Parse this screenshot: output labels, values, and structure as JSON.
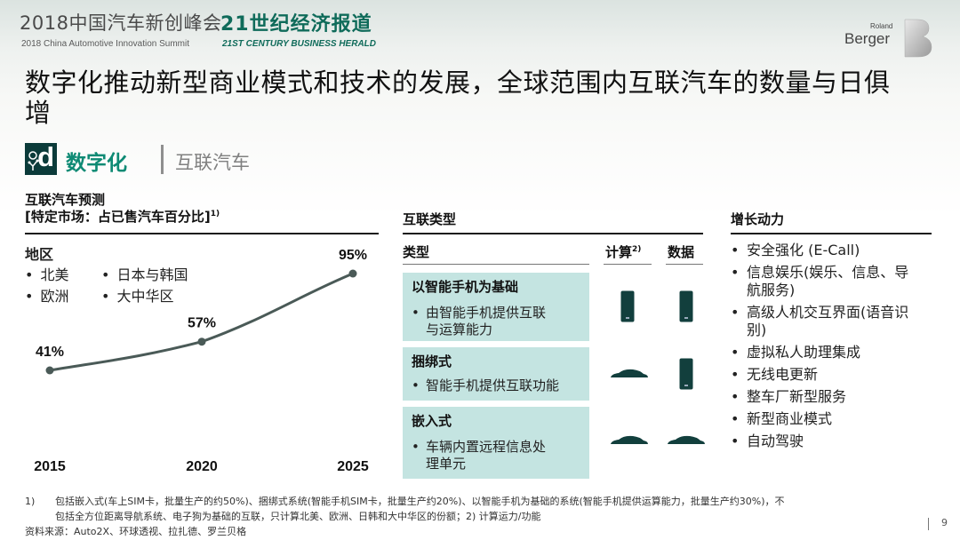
{
  "header": {
    "summit_cn": "2018中国汽车新创峰会",
    "summit_en": "2018 China Automotive Innovation Summit",
    "herald_cn": "21世纪经济报道",
    "herald_en": "21ST CENTURY BUSINESS HERALD",
    "rb_roland": "Roland",
    "rb_berger": "Berger"
  },
  "title": "数字化推动新型商业模式和技术的发展，全球范围内互联汽车的数量与日俱增",
  "section": {
    "icon_letter": "d",
    "main": "数字化",
    "sub": "互联汽车"
  },
  "forecast": {
    "heading": "互联汽车预测",
    "subheading": "[特定市场：占已售汽车百分比]",
    "subheading_sup": "1)",
    "region_label": "地区",
    "regions_left": [
      "北美",
      "欧洲"
    ],
    "regions_right": [
      "日本与韩国",
      "大中华区"
    ]
  },
  "chart_data": {
    "type": "line",
    "x": [
      "2015",
      "2020",
      "2025"
    ],
    "series": [
      {
        "values": [
          41,
          57,
          95
        ]
      }
    ],
    "data_labels": [
      "41%",
      "57%",
      "95%"
    ],
    "color": "#4a5a57"
  },
  "types": {
    "heading": "互联类型",
    "col_type": "类型",
    "col_compute": "计算",
    "col_compute_sup": "2)",
    "col_data": "数据",
    "rows": [
      {
        "title": "以智能手机为基础",
        "desc1": "由智能手机提供互联",
        "desc2": "与运算能力",
        "compute_icon": "smartphone-icon",
        "data_icon": "smartphone-icon"
      },
      {
        "title": "捆绑式",
        "desc1": "智能手机提供互联功能",
        "desc2": "",
        "compute_icon": "car-icon",
        "data_icon": "smartphone-icon"
      },
      {
        "title": "嵌入式",
        "desc1": "车辆内置远程信息处",
        "desc2": "理单元",
        "compute_icon": "car-icon",
        "data_icon": "car-icon"
      }
    ]
  },
  "growth": {
    "heading": "增长动力",
    "items": [
      "安全强化 (E-Call)",
      "信息娱乐(娱乐、信息、导",
      "航服务)",
      "高级人机交互界面(语音识",
      "别)",
      "虚拟私人助理集成",
      "无线电更新",
      "整车厂新型服务",
      "新型商业模式",
      "自动驾驶"
    ]
  },
  "footnotes": {
    "n1_label": "1)",
    "n1_line1": "包括嵌入式(车上SIM卡，批量生产的约50%)、捆绑式系统(智能手机SIM卡，批量生产约20%)、以智能手机为基础的系统(智能手机提供运算能力，批量生产约30%)，不",
    "n1_line2": "包括全方位距离导航系统、电子狗为基础的互联，只计算北美、欧洲、日韩和大中华区的份额；2) 计算运力/功能",
    "source": "资料来源：Auto2X、环球透视、拉扎德、罗兰贝格"
  },
  "page_number": "9",
  "colors": {
    "accent": "#0e8a74",
    "box": "#c4e4e1",
    "dark": "#0b3b3a",
    "herald": "#0f6b5a"
  }
}
